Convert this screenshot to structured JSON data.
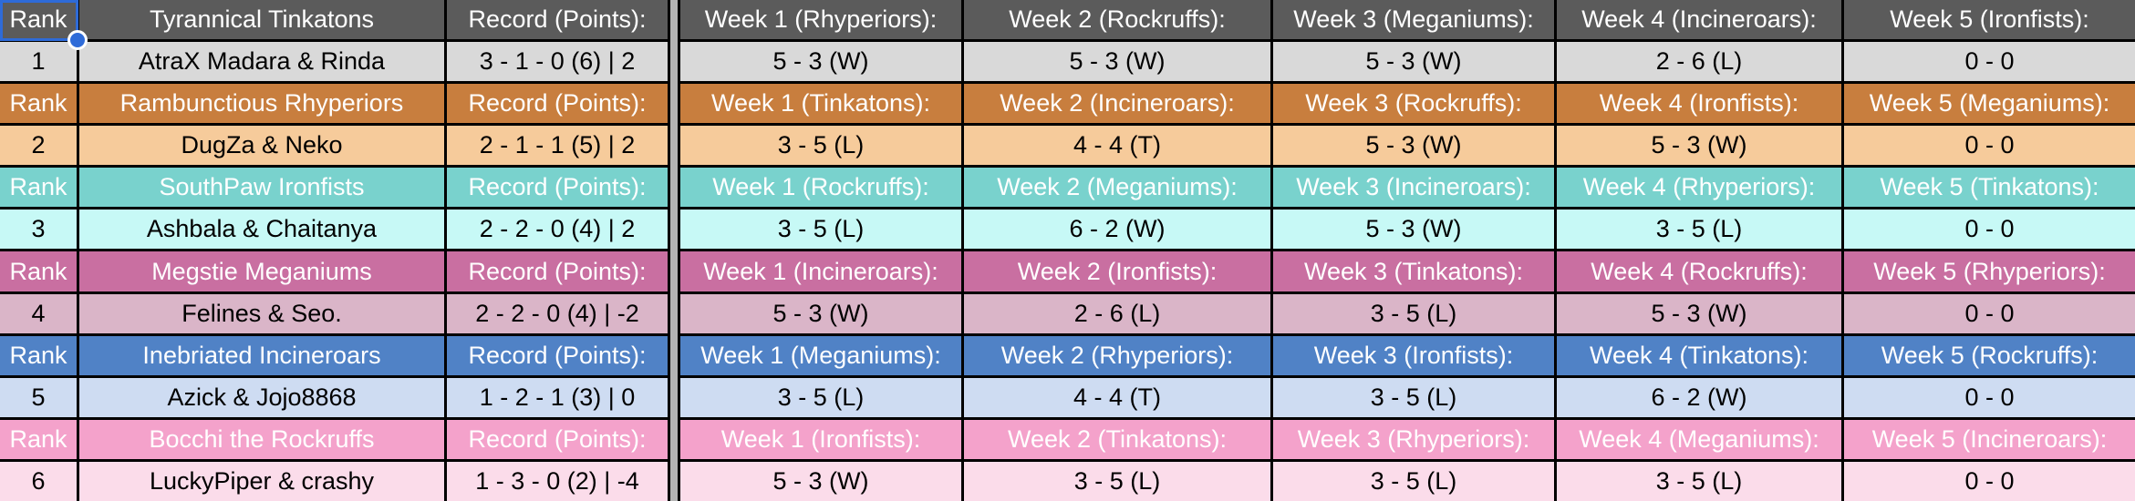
{
  "app": {
    "selected_cell_ref": "A1",
    "selected_cell_text": "Rank"
  },
  "labels": {
    "rank": "Rank",
    "record": "Record (Points):"
  },
  "colors": {
    "grid_border": "#000000",
    "spacer": "#b5b5b5",
    "selection_blue": "#2e6bd8",
    "header_text": "#ffffff",
    "data_text": "#000000"
  },
  "teams": [
    {
      "name": "Tyrannical Tinkatons",
      "rank": "1",
      "players": "AtraX Madara & Rinda",
      "record": "3 - 1 - 0 (6) | 2",
      "week_headers": [
        "Week 1 (Rhyperiors):",
        "Week 2 (Rockruffs):",
        "Week 3 (Meganiums):",
        "Week 4 (Incineroars):",
        "Week 5 (Ironfists):"
      ],
      "week_results": [
        "5 - 3 (W)",
        "5 - 3 (W)",
        "5 - 3 (W)",
        "2 - 6 (L)",
        "0 - 0"
      ],
      "colors": {
        "header": "#5b5b5b",
        "data": "#d9d9d9"
      }
    },
    {
      "name": "Rambunctious Rhyperiors",
      "rank": "2",
      "players": "DugZa & Neko",
      "record": "2 - 1 - 1 (5) | 2",
      "week_headers": [
        "Week 1 (Tinkatons):",
        "Week 2 (Incineroars):",
        "Week 3 (Rockruffs):",
        "Week 4 (Ironfists):",
        "Week 5 (Meganiums):"
      ],
      "week_results": [
        "3 - 5 (L)",
        "4 - 4 (T)",
        "5 - 3 (W)",
        "5 - 3 (W)",
        "0 - 0"
      ],
      "colors": {
        "header": "#c87e3e",
        "data": "#f6cb9b"
      }
    },
    {
      "name": "SouthPaw Ironfists",
      "rank": "3",
      "players": "Ashbala & Chaitanya",
      "record": "2 - 2 - 0 (4) | 2",
      "week_headers": [
        "Week 1 (Rockruffs):",
        "Week 2 (Meganiums):",
        "Week 3 (Incineroars):",
        "Week 4 (Rhyperiors):",
        "Week 5 (Tinkatons):"
      ],
      "week_results": [
        "3 - 5 (L)",
        "6 - 2 (W)",
        "5 - 3 (W)",
        "3 - 5 (L)",
        "0 - 0"
      ],
      "colors": {
        "header": "#79d2cd",
        "data": "#c7f9f6"
      }
    },
    {
      "name": "Megstie Meganiums",
      "rank": "4",
      "players": "Felines & Seo.",
      "record": "2 - 2 - 0 (4) | -2",
      "week_headers": [
        "Week 1 (Incineroars):",
        "Week 2 (Ironfists):",
        "Week 3 (Tinkatons):",
        "Week 4 (Rockruffs):",
        "Week 5 (Rhyperiors):"
      ],
      "week_results": [
        "5 - 3 (W)",
        "2 - 6 (L)",
        "3 - 5 (L)",
        "5 - 3 (W)",
        "0 - 0"
      ],
      "colors": {
        "header": "#c96fa1",
        "data": "#dab5c8"
      }
    },
    {
      "name": "Inebriated Incineroars",
      "rank": "5",
      "players": "Azick & Jojo8868",
      "record": "1 - 2 - 1 (3) | 0",
      "week_headers": [
        "Week 1 (Meganiums):",
        "Week 2 (Rhyperiors):",
        "Week 3 (Ironfists):",
        "Week 4 (Tinkatons):",
        "Week 5 (Rockruffs):"
      ],
      "week_results": [
        "3 - 5 (L)",
        "4 - 4 (T)",
        "3 - 5 (L)",
        "6 - 2 (W)",
        "0 - 0"
      ],
      "colors": {
        "header": "#5082c6",
        "data": "#cedcf2"
      }
    },
    {
      "name": "Bocchi the Rockruffs",
      "rank": "6",
      "players": "LuckyPiper & crashy",
      "record": "1 - 3 - 0 (2) | -4",
      "week_headers": [
        "Week 1 (Ironfists):",
        "Week 2 (Tinkatons):",
        "Week 3 (Rhyperiors):",
        "Week 4 (Meganiums):",
        "Week 5 (Incineroars):"
      ],
      "week_results": [
        "5 - 3 (W)",
        "3 - 5 (L)",
        "3 - 5 (L)",
        "3 - 5 (L)",
        "0 - 0"
      ],
      "colors": {
        "header": "#f4a2cb",
        "data": "#fbdcea"
      }
    }
  ]
}
